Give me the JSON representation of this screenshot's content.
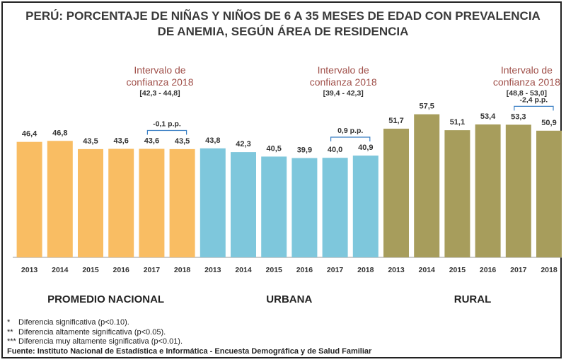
{
  "chart_data": {
    "type": "bar",
    "title_lines": [
      "PERÚ: PORCENTAJE DE NIÑAS Y NIÑOS DE 6 A 35 MESES DE EDAD CON PREVALENCIA",
      "DE ANEMIA, SEGÚN ÁREA DE RESIDENCIA"
    ],
    "ylim": [
      0,
      60
    ],
    "groups": [
      {
        "name": "PROMEDIO NACIONAL",
        "color": "#f9bd63",
        "categories": [
          "2013",
          "2014",
          "2015",
          "2016",
          "2017",
          "2018"
        ],
        "values": [
          46.4,
          46.8,
          43.5,
          43.6,
          43.6,
          43.5
        ],
        "value_labels": [
          "46,4",
          "46,8",
          "43,5",
          "43,6",
          "43,6",
          "43,5"
        ],
        "ci_title_lines": [
          "Intervalo de",
          "confianza 2018"
        ],
        "ci_range": "[42,3 - 44,8]",
        "diff_label": "-0,1 p.p."
      },
      {
        "name": "URBANA",
        "color": "#7ec7dc",
        "categories": [
          "2013",
          "2014",
          "2015",
          "2016",
          "2017",
          "2018"
        ],
        "values": [
          43.8,
          42.3,
          40.5,
          39.9,
          40.0,
          40.9
        ],
        "value_labels": [
          "43,8",
          "42,3",
          "40,5",
          "39,9",
          "40,0",
          "40,9"
        ],
        "ci_title_lines": [
          "Intervalo de",
          "confianza 2018"
        ],
        "ci_range": "[39,4 - 42,3]",
        "diff_label": "0,9 p.p."
      },
      {
        "name": "RURAL",
        "color": "#a79d5c",
        "categories": [
          "2013",
          "2014",
          "2015",
          "2016",
          "2017",
          "2018"
        ],
        "values": [
          51.7,
          57.5,
          51.1,
          53.4,
          53.3,
          50.9
        ],
        "value_labels": [
          "51,7",
          "57,5",
          "51,1",
          "53,4",
          "53,3",
          "50,9"
        ],
        "ci_title_lines": [
          "Intervalo de",
          "confianza 2018"
        ],
        "ci_range": "[48,8 - 53,0]",
        "diff_label": "-2,4 p.p."
      }
    ]
  },
  "notes": [
    {
      "mark": "*",
      "text": "Diferencia significativa (p<0.10)."
    },
    {
      "mark": "**",
      "text": "Diferencia altamente significativa (p<0.05)."
    },
    {
      "mark": "***",
      "text": "Diferencia muy altamente significativa (p<0.01)."
    }
  ],
  "source": "Fuente: Instituto Nacional de Estadística e Informática - Encuesta Demográfica y de Salud Familiar"
}
